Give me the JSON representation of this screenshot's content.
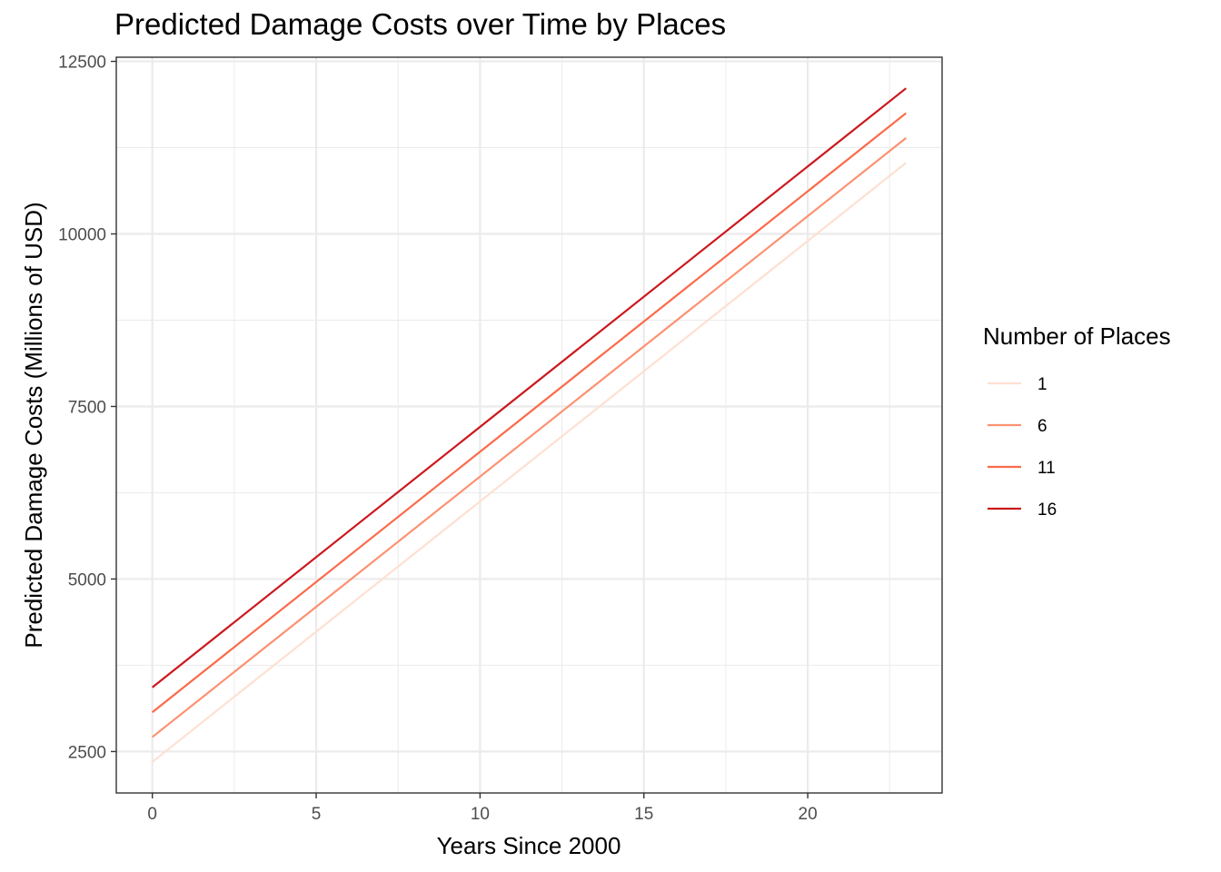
{
  "chart_data": {
    "type": "line",
    "title": "Predicted Damage Costs over Time by Places",
    "xlabel": "Years Since 2000",
    "ylabel": "Predicted Damage Costs (Millions of USD)",
    "xlim": [
      -1.1,
      24.1
    ],
    "ylim": [
      1900,
      12560
    ],
    "x_ticks": [
      0,
      5,
      10,
      15,
      20
    ],
    "y_ticks": [
      2500,
      5000,
      7500,
      10000,
      12500
    ],
    "grid": true,
    "legend": {
      "title": "Number of Places",
      "position": "right"
    },
    "series": [
      {
        "name": "1",
        "color": "#fee0d2",
        "x": [
          0,
          23
        ],
        "values": [
          2350,
          11030
        ]
      },
      {
        "name": "6",
        "color": "#fc9272",
        "x": [
          0,
          23
        ],
        "values": [
          2710,
          11390
        ]
      },
      {
        "name": "11",
        "color": "#fb6a4a",
        "x": [
          0,
          23
        ],
        "values": [
          3070,
          11750
        ]
      },
      {
        "name": "16",
        "color": "#cb181d",
        "x": [
          0,
          23
        ],
        "values": [
          3430,
          12110
        ]
      }
    ]
  }
}
